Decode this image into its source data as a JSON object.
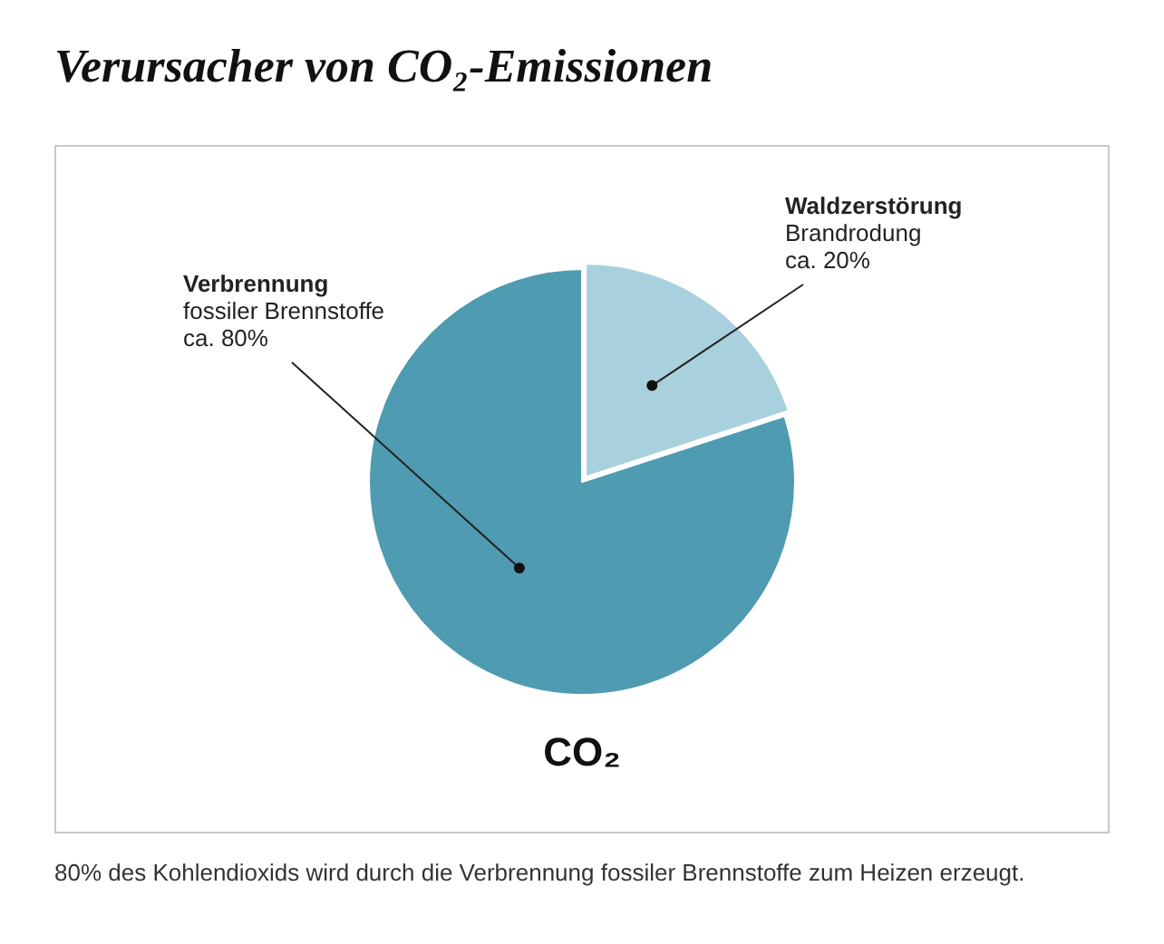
{
  "chart_data": {
    "type": "pie",
    "title": "Verursacher von CO₂-Emissionen",
    "categories": [
      "Waldzerstörung",
      "Verbrennung"
    ],
    "values": [
      20,
      80
    ],
    "colors": [
      "#a9d0dd",
      "#4f9bb1"
    ],
    "value_labels": [
      "ca. 20%",
      "ca. 80%"
    ],
    "annotations": [
      {
        "text": "Brandrodung",
        "x": "Waldzerstörung"
      },
      {
        "text": "fossiler Brennstoffe",
        "x": "Verbrennung"
      },
      "CO₂",
      "80% des Kohlendioxids wird durch die Verbrennung fossiler Brennstoffe zum Heizen erzeugt."
    ]
  }
}
